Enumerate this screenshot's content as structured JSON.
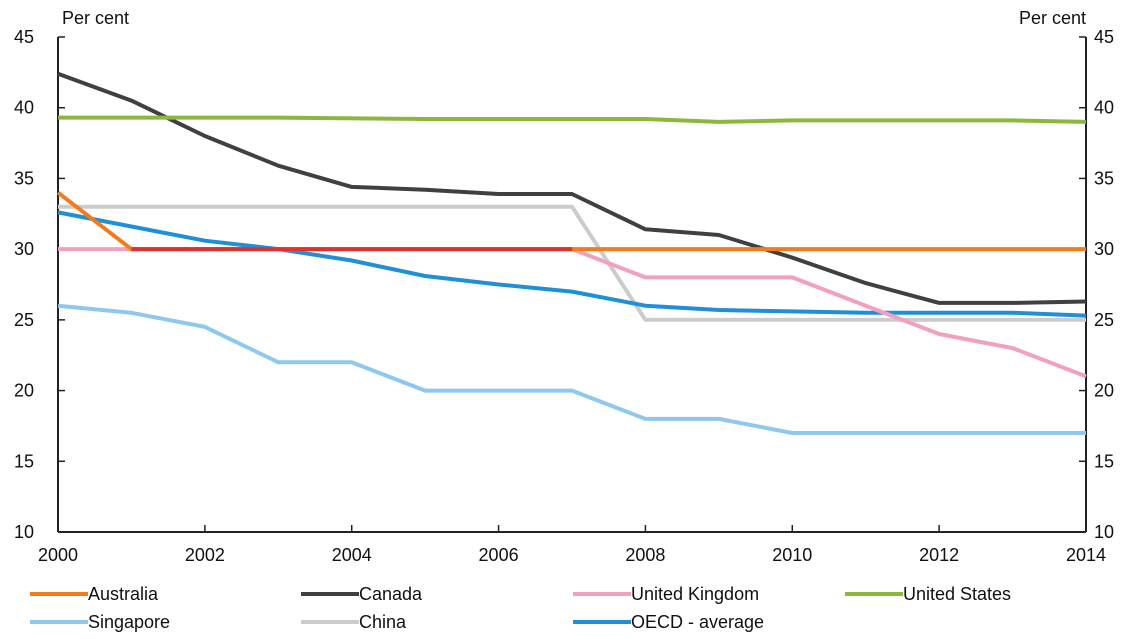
{
  "chart_data": {
    "type": "line",
    "unit_left": "Per cent",
    "unit_right": "Per cent",
    "x_ticks": [
      "2000",
      "2002",
      "2004",
      "2006",
      "2008",
      "2010",
      "2012",
      "2014"
    ],
    "y_ticks": [
      "10",
      "15",
      "20",
      "25",
      "30",
      "35",
      "40",
      "45"
    ],
    "xlim": [
      2000,
      2014
    ],
    "ylim": [
      10,
      45
    ],
    "grid": false,
    "legend_position": "bottom",
    "series": [
      {
        "name": "Australia",
        "color": "#f47a20",
        "x": [
          2000,
          2001,
          2014
        ],
        "y": [
          34,
          30,
          30
        ]
      },
      {
        "name": "Canada",
        "color": "#404040",
        "x": [
          2000,
          2001,
          2002,
          2003,
          2004,
          2005,
          2006,
          2007,
          2008,
          2009,
          2010,
          2011,
          2012,
          2013,
          2014
        ],
        "y": [
          42.4,
          40.5,
          38,
          35.9,
          34.4,
          34.2,
          33.9,
          33.9,
          31.4,
          31,
          29.4,
          27.6,
          26.2,
          26.2,
          26.3
        ]
      },
      {
        "name": "United Kingdom",
        "color": "#f2a0bf",
        "x": [
          2000,
          2007,
          2008,
          2009,
          2010,
          2011,
          2012,
          2013,
          2014
        ],
        "y": [
          30,
          30,
          28,
          28,
          28,
          26,
          24,
          23,
          21
        ]
      },
      {
        "name": "United States",
        "color": "#8db63c",
        "x": [
          2000,
          2003,
          2005,
          2008,
          2009,
          2010,
          2013,
          2014
        ],
        "y": [
          39.3,
          39.3,
          39.2,
          39.2,
          39.0,
          39.1,
          39.1,
          39.0
        ]
      },
      {
        "name": "Singapore",
        "color": "#8ec8ee",
        "x": [
          2000,
          2001,
          2002,
          2003,
          2004,
          2005,
          2006,
          2007,
          2008,
          2009,
          2010,
          2011,
          2012,
          2013,
          2014
        ],
        "y": [
          26,
          25.5,
          24.5,
          22,
          22,
          20,
          20,
          20,
          18,
          18,
          17,
          17,
          17,
          17,
          17
        ]
      },
      {
        "name": "China",
        "color": "#cccccc",
        "x": [
          2000,
          2007,
          2008,
          2014
        ],
        "y": [
          33,
          33,
          25,
          25
        ]
      },
      {
        "name": "OECD - average",
        "color": "#1f90d8",
        "x": [
          2000,
          2001,
          2002,
          2003,
          2004,
          2005,
          2006,
          2007,
          2008,
          2009,
          2010,
          2011,
          2012,
          2013,
          2014
        ],
        "y": [
          32.6,
          31.6,
          30.6,
          30.0,
          29.2,
          28.1,
          27.5,
          27.0,
          26.0,
          25.7,
          25.6,
          25.5,
          25.5,
          25.5,
          25.3
        ]
      }
    ],
    "overlap_color": "#e03030",
    "overlap_x": [
      2001,
      2007
    ],
    "overlap_y": 30
  }
}
